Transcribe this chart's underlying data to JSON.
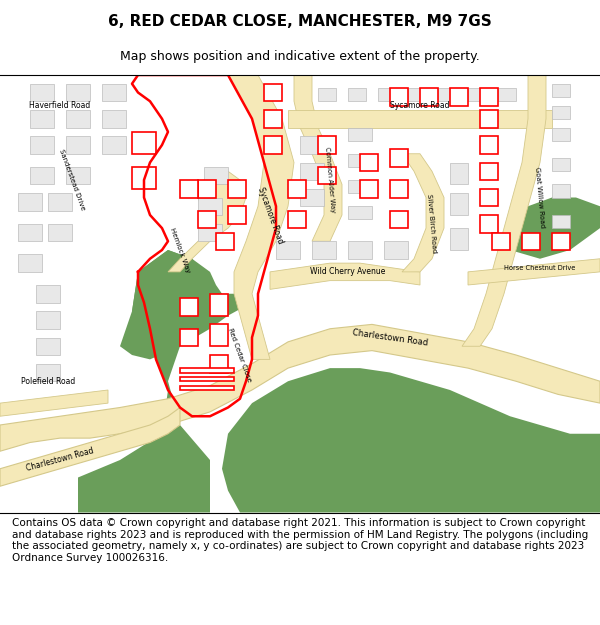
{
  "title": "6, RED CEDAR CLOSE, MANCHESTER, M9 7GS",
  "subtitle": "Map shows position and indicative extent of the property.",
  "footer": "Contains OS data © Crown copyright and database right 2021. This information is subject to Crown copyright and database rights 2023 and is reproduced with the permission of HM Land Registry. The polygons (including the associated geometry, namely x, y co-ordinates) are subject to Crown copyright and database rights 2023 Ordnance Survey 100026316.",
  "map_bg": "#ffffff",
  "green_color": "#6a9e5a",
  "road_color": "#f5e9b8",
  "road_border": "#d4c88a",
  "building_fill": "#e8e8e8",
  "building_stroke": "#bbbbbb",
  "red_outline": "#ff0000",
  "title_fontsize": 11,
  "subtitle_fontsize": 9,
  "footer_fontsize": 7.5
}
